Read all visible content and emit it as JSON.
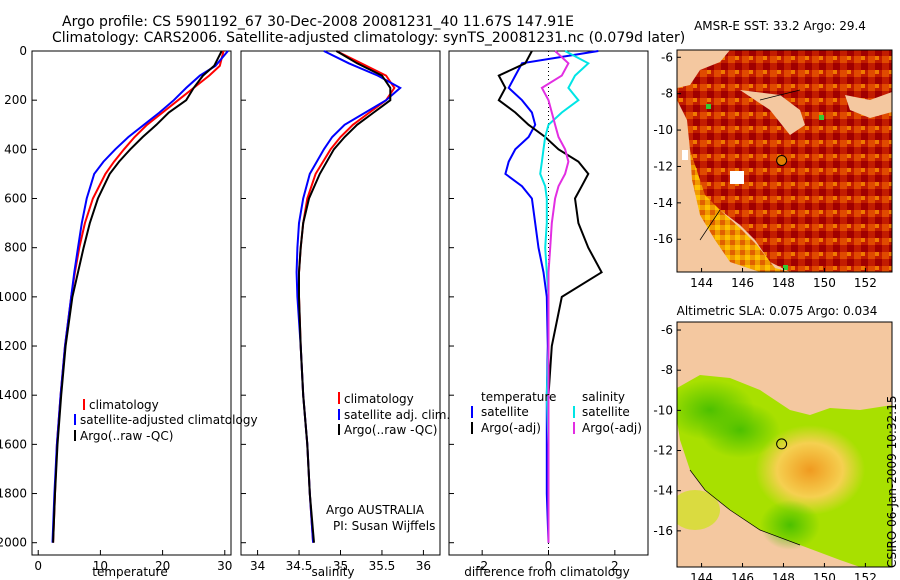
{
  "title_line1": "Argo profile: CS 5901192_67 30-Dec-2008 20081231_40 11.67S 147.91E",
  "title_line2": "Climatology: CARS2006. Satellite-adjusted climatology: synTS_20081231.nc (0.079d later)",
  "credit_argo": "Argo AUSTRALIA",
  "credit_pi": "PI: Susan Wijffels",
  "timestamp": "CSIRO 06-Jan-2009 10:32:15",
  "colors": {
    "clim": "#ff0000",
    "sat": "#0000ff",
    "argo": "#000000",
    "sat_diff": "#00e5e5",
    "argo_sal_diff": "#e22ee2",
    "land": "#f4c8a0",
    "sea_green": "#5fd400"
  },
  "chart_data": [
    {
      "type": "line",
      "id": "temperature",
      "xlabel": "temperature",
      "xlim": [
        -1,
        31
      ],
      "ylim": [
        0,
        2050
      ],
      "xticks": [
        0,
        10,
        20,
        30
      ],
      "yticks": [
        0,
        200,
        400,
        600,
        800,
        1000,
        1200,
        1400,
        1600,
        1800,
        2000
      ],
      "legend": [
        "climatology",
        "satellite-adjusted climatology",
        "Argo(..raw -QC)"
      ],
      "depth": [
        0,
        60,
        100,
        150,
        200,
        250,
        300,
        350,
        400,
        450,
        500,
        600,
        700,
        800,
        900,
        1000,
        1200,
        1400,
        1600,
        1800,
        2000
      ],
      "series": [
        {
          "name": "climatology",
          "color": "clim",
          "values": [
            29.8,
            29.2,
            27.5,
            25.0,
            22.5,
            20.0,
            17.5,
            15.5,
            13.8,
            12.2,
            10.8,
            8.8,
            7.5,
            6.6,
            5.9,
            5.3,
            4.3,
            3.6,
            3.0,
            2.7,
            2.4
          ]
        },
        {
          "name": "satellite-adjusted climatology",
          "color": "sat",
          "values": [
            30.5,
            28.5,
            26.0,
            23.8,
            21.8,
            19.5,
            17.0,
            14.5,
            12.4,
            10.5,
            9.0,
            7.8,
            7.0,
            6.4,
            5.8,
            5.3,
            4.3,
            3.6,
            3.0,
            2.6,
            2.3
          ]
        },
        {
          "name": "Argo(..raw -QC)",
          "color": "argo",
          "values": [
            29.5,
            28.3,
            26.5,
            25.0,
            23.8,
            21.0,
            19.0,
            16.8,
            14.8,
            13.0,
            11.5,
            9.6,
            8.3,
            7.3,
            6.4,
            5.5,
            4.4,
            3.7,
            3.1,
            2.7,
            2.4
          ]
        }
      ]
    },
    {
      "type": "line",
      "id": "salinity",
      "xlabel": "salinity",
      "xlim": [
        33.8,
        36.2
      ],
      "ylim": [
        0,
        2050
      ],
      "xticks": [
        34,
        34.5,
        35,
        35.5,
        36
      ],
      "legend": [
        "climatology",
        "satellite adj. clim.",
        "Argo(..raw -QC)"
      ],
      "depth": [
        0,
        50,
        100,
        150,
        200,
        250,
        300,
        350,
        400,
        500,
        600,
        700,
        800,
        900,
        1000,
        1200,
        1400,
        1600,
        1800,
        2000
      ],
      "series": [
        {
          "name": "climatology",
          "color": "clim",
          "values": [
            34.95,
            35.25,
            35.55,
            35.65,
            35.55,
            35.35,
            35.15,
            35.0,
            34.88,
            34.7,
            34.6,
            34.55,
            34.52,
            34.5,
            34.5,
            34.52,
            34.55,
            34.6,
            34.63,
            34.67
          ]
        },
        {
          "name": "satellite adj. clim.",
          "color": "sat",
          "values": [
            34.8,
            35.1,
            35.45,
            35.72,
            35.55,
            35.3,
            35.05,
            34.9,
            34.8,
            34.63,
            34.55,
            34.5,
            34.48,
            34.47,
            34.48,
            34.52,
            34.55,
            34.6,
            34.63,
            34.67
          ]
        },
        {
          "name": "Argo(..raw -QC)",
          "color": "argo",
          "values": [
            34.95,
            35.2,
            35.5,
            35.6,
            35.6,
            35.4,
            35.2,
            35.05,
            34.92,
            34.75,
            34.62,
            34.55,
            34.52,
            34.5,
            34.5,
            34.52,
            34.55,
            34.6,
            34.63,
            34.68
          ]
        }
      ]
    },
    {
      "type": "line",
      "id": "difference",
      "xlabel": "difference from climatology",
      "xlim": [
        -3,
        3
      ],
      "ylim": [
        0,
        2050
      ],
      "xticks": [
        -2,
        0,
        2
      ],
      "legend_headers": [
        "temperature",
        "salinity"
      ],
      "legend_left": [
        "satellite",
        "Argo(-adj)"
      ],
      "legend_right": [
        "satellite",
        "Argo(-adj)"
      ],
      "depth": [
        0,
        50,
        100,
        150,
        200,
        250,
        300,
        350,
        400,
        450,
        500,
        550,
        600,
        700,
        800,
        900,
        1000,
        1200,
        1400,
        1600,
        1800,
        2000
      ],
      "series": [
        {
          "name": "temperature satellite",
          "color": "sat",
          "values": [
            1.5,
            -0.8,
            -1.0,
            -1.2,
            -0.8,
            -0.5,
            -0.4,
            -0.6,
            -1.0,
            -1.2,
            -1.3,
            -0.8,
            -0.5,
            -0.4,
            -0.3,
            -0.15,
            -0.05,
            -0.02,
            -0.05,
            -0.05,
            -0.05,
            0.0
          ]
        },
        {
          "name": "temperature Argo(-adj)",
          "color": "argo",
          "values": [
            -0.5,
            -0.7,
            -1.5,
            -1.3,
            -1.5,
            -1.0,
            -0.6,
            -0.1,
            0.3,
            0.9,
            1.2,
            1.0,
            0.8,
            0.9,
            1.2,
            1.6,
            0.4,
            0.1,
            0.0,
            0.0,
            0.0,
            0.0
          ]
        },
        {
          "name": "salinity satellite",
          "color": "sat_diff",
          "values": [
            0.5,
            1.2,
            0.8,
            0.6,
            0.9,
            0.4,
            0.0,
            -0.1,
            -0.15,
            -0.2,
            -0.25,
            -0.1,
            -0.05,
            -0.05,
            -0.1,
            -0.05,
            0.0,
            0.0,
            -0.05,
            0.0,
            0.0,
            0.0
          ]
        },
        {
          "name": "salinity Argo(-adj)",
          "color": "argo_sal_diff",
          "values": [
            0.2,
            0.6,
            0.4,
            -0.2,
            0.0,
            0.1,
            0.2,
            0.3,
            0.5,
            0.6,
            0.5,
            0.3,
            0.2,
            0.1,
            0.05,
            0.0,
            0.0,
            0.0,
            0.0,
            0.0,
            0.0,
            0.0
          ]
        }
      ]
    },
    {
      "type": "heatmap",
      "id": "sst_map",
      "title": "AMSR-E SST: 33.2 Argo: 29.4",
      "xticks": [
        144,
        146,
        148,
        150,
        152
      ],
      "yticks": [
        -6,
        -8,
        -10,
        -12,
        -14,
        -16
      ],
      "xlim": [
        142.8,
        153.3
      ],
      "ylim": [
        -17.8,
        -5.6
      ],
      "argo_position": [
        147.91,
        -11.67
      ]
    },
    {
      "type": "heatmap",
      "id": "sla_map",
      "title": "Altimetric SLA: 0.075 Argo: 0.034",
      "xticks": [
        144,
        146,
        148,
        150,
        152
      ],
      "yticks": [
        -6,
        -8,
        -10,
        -12,
        -14,
        -16
      ],
      "xlim": [
        142.8,
        153.3
      ],
      "ylim": [
        -17.8,
        -5.6
      ],
      "argo_position": [
        147.91,
        -11.67
      ]
    }
  ]
}
